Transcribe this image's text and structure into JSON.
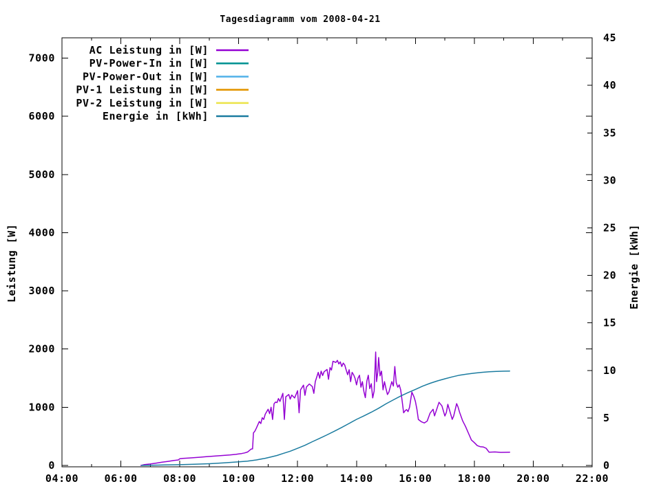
{
  "chart_data": {
    "type": "line",
    "title": "Tagesdiagramm vom 2008-04-21",
    "grid": false,
    "legend_position": "top-left-inside",
    "x": {
      "label": "",
      "unit": "time",
      "min_hour": 4,
      "max_hour": 22,
      "major_tick_step_hours": 2,
      "minor_tick_step_hours": 1,
      "tick_labels": [
        "04:00",
        "06:00",
        "08:00",
        "10:00",
        "12:00",
        "14:00",
        "16:00",
        "18:00",
        "20:00",
        "22:00"
      ]
    },
    "y_left": {
      "label": "Leistung [W]",
      "min": 0,
      "max": 7000,
      "tick_step": 1000,
      "tick_labels": [
        "0",
        "1000",
        "2000",
        "3000",
        "4000",
        "5000",
        "6000",
        "7000"
      ]
    },
    "y_right": {
      "label": "Energie [kWh]",
      "min": 0,
      "max": 45,
      "tick_step": 5,
      "tick_labels": [
        "0",
        "5",
        "10",
        "15",
        "20",
        "25",
        "30",
        "35",
        "40",
        "45"
      ]
    },
    "series": [
      {
        "name": "AC Leistung in [W]",
        "color": "#9400d3",
        "axis": "left",
        "points": [
          [
            6.68,
            0
          ],
          [
            6.8,
            15
          ],
          [
            7.0,
            25
          ],
          [
            7.2,
            40
          ],
          [
            7.4,
            55
          ],
          [
            7.6,
            70
          ],
          [
            7.8,
            85
          ],
          [
            7.95,
            95
          ],
          [
            8.0,
            115
          ],
          [
            8.1,
            120
          ],
          [
            8.3,
            128
          ],
          [
            8.5,
            135
          ],
          [
            8.7,
            142
          ],
          [
            8.9,
            150
          ],
          [
            9.1,
            158
          ],
          [
            9.3,
            165
          ],
          [
            9.5,
            172
          ],
          [
            9.7,
            180
          ],
          [
            9.9,
            190
          ],
          [
            10.0,
            198
          ],
          [
            10.1,
            205
          ],
          [
            10.2,
            215
          ],
          [
            10.3,
            230
          ],
          [
            10.35,
            250
          ],
          [
            10.42,
            280
          ],
          [
            10.47,
            285
          ],
          [
            10.5,
            560
          ],
          [
            10.55,
            590
          ],
          [
            10.6,
            640
          ],
          [
            10.7,
            755
          ],
          [
            10.75,
            720
          ],
          [
            10.8,
            820
          ],
          [
            10.85,
            790
          ],
          [
            10.9,
            880
          ],
          [
            11.0,
            965
          ],
          [
            11.05,
            890
          ],
          [
            11.1,
            1000
          ],
          [
            11.15,
            790
          ],
          [
            11.2,
            1060
          ],
          [
            11.25,
            1090
          ],
          [
            11.3,
            1080
          ],
          [
            11.35,
            1150
          ],
          [
            11.4,
            1100
          ],
          [
            11.5,
            1240
          ],
          [
            11.55,
            790
          ],
          [
            11.6,
            1180
          ],
          [
            11.7,
            1220
          ],
          [
            11.75,
            1140
          ],
          [
            11.8,
            1210
          ],
          [
            11.9,
            1160
          ],
          [
            12.0,
            1285
          ],
          [
            12.05,
            905
          ],
          [
            12.1,
            1300
          ],
          [
            12.2,
            1380
          ],
          [
            12.25,
            1205
          ],
          [
            12.3,
            1350
          ],
          [
            12.4,
            1400
          ],
          [
            12.5,
            1355
          ],
          [
            12.55,
            1240
          ],
          [
            12.6,
            1440
          ],
          [
            12.7,
            1600
          ],
          [
            12.75,
            1500
          ],
          [
            12.8,
            1620
          ],
          [
            12.85,
            1545
          ],
          [
            12.9,
            1610
          ],
          [
            13.0,
            1650
          ],
          [
            13.05,
            1480
          ],
          [
            13.1,
            1680
          ],
          [
            13.15,
            1640
          ],
          [
            13.2,
            1790
          ],
          [
            13.3,
            1770
          ],
          [
            13.35,
            1805
          ],
          [
            13.4,
            1745
          ],
          [
            13.45,
            1780
          ],
          [
            13.5,
            1700
          ],
          [
            13.55,
            1760
          ],
          [
            13.6,
            1725
          ],
          [
            13.65,
            1640
          ],
          [
            13.7,
            1560
          ],
          [
            13.75,
            1645
          ],
          [
            13.8,
            1440
          ],
          [
            13.85,
            1600
          ],
          [
            13.9,
            1560
          ],
          [
            13.95,
            1500
          ],
          [
            14.0,
            1385
          ],
          [
            14.05,
            1500
          ],
          [
            14.1,
            1550
          ],
          [
            14.15,
            1345
          ],
          [
            14.2,
            1440
          ],
          [
            14.25,
            1270
          ],
          [
            14.3,
            1165
          ],
          [
            14.35,
            1450
          ],
          [
            14.4,
            1550
          ],
          [
            14.45,
            1320
          ],
          [
            14.5,
            1405
          ],
          [
            14.55,
            1160
          ],
          [
            14.6,
            1280
          ],
          [
            14.65,
            1950
          ],
          [
            14.68,
            1440
          ],
          [
            14.72,
            1600
          ],
          [
            14.75,
            1855
          ],
          [
            14.8,
            1540
          ],
          [
            14.85,
            1620
          ],
          [
            14.9,
            1300
          ],
          [
            14.95,
            1440
          ],
          [
            15.0,
            1320
          ],
          [
            15.05,
            1220
          ],
          [
            15.1,
            1260
          ],
          [
            15.15,
            1355
          ],
          [
            15.2,
            1440
          ],
          [
            15.25,
            1365
          ],
          [
            15.3,
            1700
          ],
          [
            15.35,
            1420
          ],
          [
            15.4,
            1345
          ],
          [
            15.45,
            1385
          ],
          [
            15.5,
            1300
          ],
          [
            15.55,
            1105
          ],
          [
            15.6,
            905
          ],
          [
            15.65,
            940
          ],
          [
            15.7,
            960
          ],
          [
            15.75,
            925
          ],
          [
            15.8,
            1000
          ],
          [
            15.88,
            1260
          ],
          [
            15.95,
            1180
          ],
          [
            16.0,
            1100
          ],
          [
            16.05,
            965
          ],
          [
            16.1,
            790
          ],
          [
            16.2,
            752
          ],
          [
            16.3,
            730
          ],
          [
            16.4,
            762
          ],
          [
            16.5,
            900
          ],
          [
            16.6,
            965
          ],
          [
            16.65,
            852
          ],
          [
            16.7,
            930
          ],
          [
            16.8,
            1085
          ],
          [
            16.9,
            1025
          ],
          [
            17.0,
            850
          ],
          [
            17.05,
            912
          ],
          [
            17.1,
            1050
          ],
          [
            17.15,
            965
          ],
          [
            17.25,
            792
          ],
          [
            17.3,
            850
          ],
          [
            17.4,
            1062
          ],
          [
            17.45,
            1000
          ],
          [
            17.5,
            912
          ],
          [
            17.6,
            770
          ],
          [
            17.7,
            670
          ],
          [
            17.8,
            555
          ],
          [
            17.9,
            438
          ],
          [
            18.0,
            392
          ],
          [
            18.1,
            340
          ],
          [
            18.2,
            322
          ],
          [
            18.3,
            318
          ],
          [
            18.4,
            295
          ],
          [
            18.5,
            228
          ],
          [
            18.7,
            232
          ],
          [
            18.9,
            225
          ],
          [
            19.2,
            228
          ]
        ]
      },
      {
        "name": "PV-Power-In in [W]",
        "color": "#009393",
        "axis": "left",
        "points": []
      },
      {
        "name": "PV-Power-Out in [W]",
        "color": "#56b4e9",
        "axis": "left",
        "points": []
      },
      {
        "name": "PV-1 Leistung in [W]",
        "color": "#e39500",
        "axis": "left",
        "points": []
      },
      {
        "name": "PV-2 Leistung in [W]",
        "color": "#ece44c",
        "axis": "left",
        "points": []
      },
      {
        "name": "Energie in [kWh]",
        "color": "#1a7b9f",
        "axis": "right",
        "points": [
          [
            6.7,
            0
          ],
          [
            7.0,
            0.02
          ],
          [
            7.5,
            0.05
          ],
          [
            8.0,
            0.08
          ],
          [
            8.5,
            0.12
          ],
          [
            9.0,
            0.18
          ],
          [
            9.5,
            0.27
          ],
          [
            10.0,
            0.38
          ],
          [
            10.3,
            0.45
          ],
          [
            10.6,
            0.58
          ],
          [
            10.9,
            0.75
          ],
          [
            11.1,
            0.9
          ],
          [
            11.3,
            1.05
          ],
          [
            11.5,
            1.25
          ],
          [
            11.75,
            1.5
          ],
          [
            12.0,
            1.8
          ],
          [
            12.25,
            2.12
          ],
          [
            12.5,
            2.5
          ],
          [
            12.75,
            2.85
          ],
          [
            13.0,
            3.22
          ],
          [
            13.25,
            3.6
          ],
          [
            13.5,
            4.0
          ],
          [
            13.75,
            4.42
          ],
          [
            14.0,
            4.85
          ],
          [
            14.25,
            5.22
          ],
          [
            14.5,
            5.6
          ],
          [
            14.75,
            6.02
          ],
          [
            15.0,
            6.48
          ],
          [
            15.25,
            6.9
          ],
          [
            15.5,
            7.3
          ],
          [
            15.75,
            7.66
          ],
          [
            16.0,
            8.0
          ],
          [
            16.25,
            8.35
          ],
          [
            16.5,
            8.65
          ],
          [
            16.75,
            8.9
          ],
          [
            17.0,
            9.12
          ],
          [
            17.25,
            9.32
          ],
          [
            17.5,
            9.5
          ],
          [
            17.75,
            9.62
          ],
          [
            18.0,
            9.72
          ],
          [
            18.25,
            9.8
          ],
          [
            18.5,
            9.86
          ],
          [
            18.75,
            9.9
          ],
          [
            19.0,
            9.92
          ],
          [
            19.2,
            9.93
          ]
        ]
      }
    ]
  }
}
